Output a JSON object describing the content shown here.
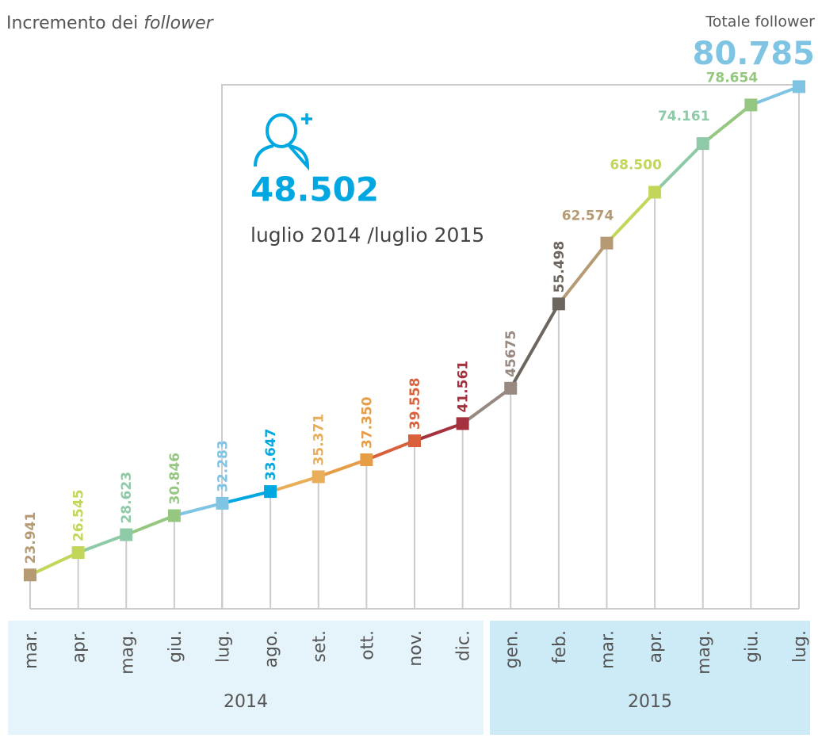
{
  "chart_data": {
    "type": "line",
    "title": "Incremento dei",
    "title_emphasis": "follower",
    "total_label": "Totale follower",
    "annotation": "48.502",
    "annotation_period": "luglio 2014 /luglio 2015",
    "groups": [
      {
        "label": "2014",
        "categories": [
          "mar.",
          "apr.",
          "mag.",
          "giu.",
          "lug.",
          "ago.",
          "set.",
          "ott.",
          "nov.",
          "dic."
        ]
      },
      {
        "label": "2015",
        "categories": [
          "gen.",
          "feb.",
          "mar.",
          "apr.",
          "mag.",
          "giu.",
          "lug."
        ]
      }
    ],
    "values": [
      23941,
      26545,
      28623,
      30846,
      32283,
      33647,
      35371,
      37350,
      39558,
      41561,
      45675,
      55498,
      62574,
      68500,
      74161,
      78654,
      80785
    ],
    "value_labels": [
      "23.941",
      "26.545",
      "28.623",
      "30.846",
      "32.283",
      "33.647",
      "35.371",
      "37.350",
      "39.558",
      "41.561",
      "45675",
      "55.498",
      "62.574",
      "68.500",
      "74.161",
      "78.654",
      "80.785"
    ],
    "colors": [
      "#b59a74",
      "#c3d65a",
      "#8ecaa8",
      "#95c781",
      "#7fc4e3",
      "#00a7e1",
      "#e9ae5a",
      "#e69d46",
      "#d9603b",
      "#a5313f",
      "#978880",
      "#6d665f",
      "#b59a74",
      "#c3d65a",
      "#8ecaa8",
      "#95c781",
      "#7fc4e3"
    ],
    "ylim": [
      20000,
      81000
    ]
  }
}
